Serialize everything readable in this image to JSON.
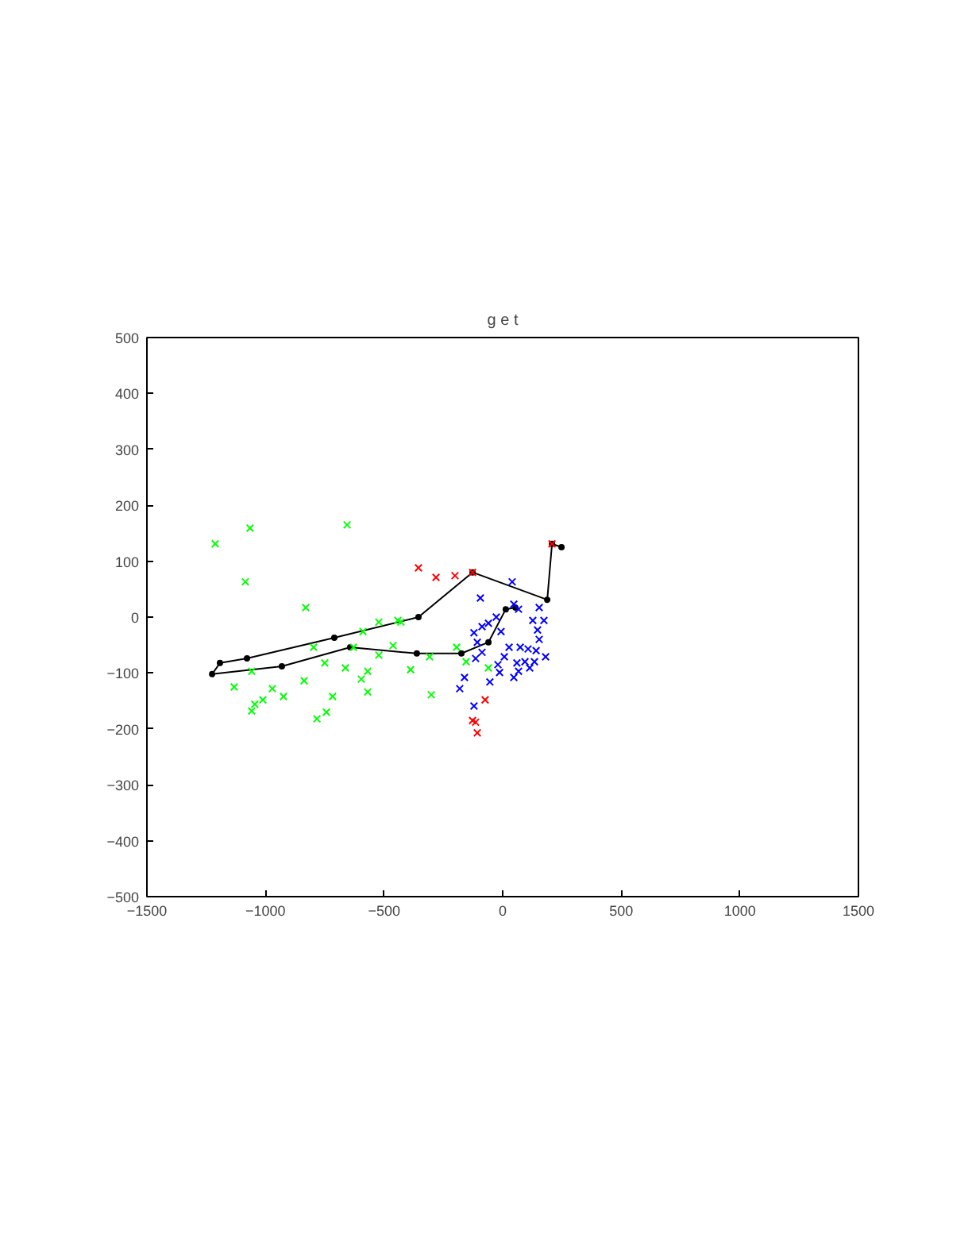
{
  "chart_data": {
    "type": "scatter",
    "title": "g e t",
    "marker": "cross",
    "grid": false,
    "xlim": [
      -1500,
      1500
    ],
    "ylim": [
      -500,
      500
    ],
    "xticks": [
      -1500,
      -1000,
      -500,
      0,
      500,
      1000,
      1500
    ],
    "yticks": [
      -500,
      -400,
      -300,
      -200,
      -100,
      0,
      100,
      200,
      300,
      400,
      500
    ],
    "series": [
      {
        "color": "#00ff00",
        "x": [
          -1212,
          -1065,
          -656,
          -1085,
          -830,
          -522,
          -442,
          -589,
          -797,
          -629,
          -462,
          -522,
          -750,
          -663,
          -569,
          -596,
          -1058,
          -837,
          -1132,
          -971,
          -924,
          -717,
          -569,
          -1011,
          -1045,
          -1058,
          -743,
          -783,
          -388,
          -429,
          -194,
          -308,
          -154,
          -60,
          -301
        ],
        "values": [
          131,
          159,
          165,
          63,
          17,
          -9,
          -6,
          -26,
          -54,
          -54,
          -51,
          -68,
          -82,
          -91,
          -97,
          -111,
          -97,
          -114,
          -125,
          -128,
          -142,
          -142,
          -134,
          -148,
          -156,
          -168,
          -170,
          -182,
          -94,
          -9,
          -54,
          -71,
          -80,
          -91,
          -139
        ]
      },
      {
        "color": "#0000ff",
        "x": [
          40,
          -94,
          47,
          67,
          154,
          -27,
          -60,
          -87,
          127,
          147,
          174,
          154,
          -121,
          -107,
          -7,
          27,
          74,
          107,
          141,
          -87,
          -20,
          7,
          60,
          94,
          134,
          181,
          67,
          47,
          -13,
          -114,
          -161,
          -181,
          -54,
          -121,
          114
        ],
        "values": [
          63,
          34,
          23,
          14,
          17,
          0,
          -11,
          -17,
          -6,
          -23,
          -6,
          -40,
          -28,
          -45,
          -26,
          -54,
          -54,
          -57,
          -60,
          -63,
          -85,
          -71,
          -82,
          -80,
          -80,
          -71,
          -97,
          -108,
          -99,
          -74,
          -108,
          -128,
          -116,
          -159,
          -91
        ]
      },
      {
        "color": "#ff0000",
        "x": [
          -355,
          -281,
          -201,
          -127,
          208,
          -74,
          -127,
          -114,
          -107
        ],
        "values": [
          88,
          71,
          74,
          80,
          131,
          -148,
          -185,
          -188,
          -207
        ]
      },
      {
        "type": "line",
        "marker": "circle",
        "color": "#000000",
        "x": [
          248,
          208,
          188,
          -127,
          -355,
          -710,
          -1078,
          -1192,
          -1225,
          -931,
          -643,
          -362,
          -174,
          -60,
          13,
          54
        ],
        "values": [
          125,
          131,
          31,
          80,
          0,
          -37,
          -74,
          -82,
          -102,
          -88,
          -54,
          -65,
          -65,
          -45,
          14,
          17
        ]
      }
    ]
  }
}
